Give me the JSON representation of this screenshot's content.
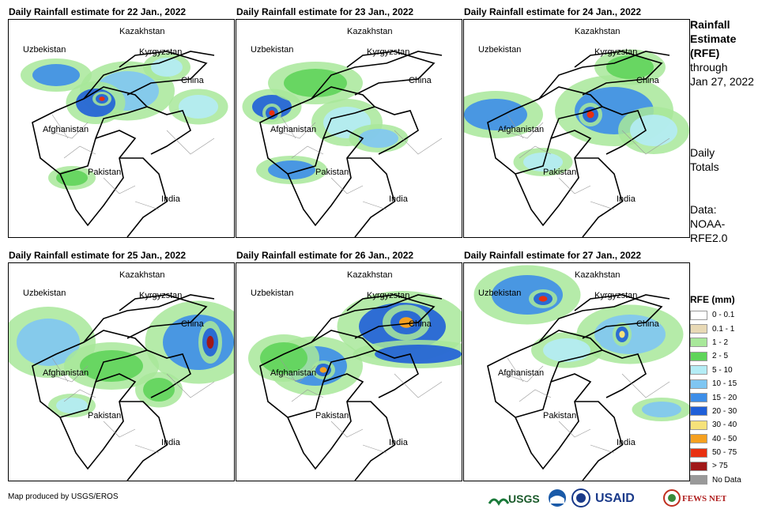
{
  "panels": [
    {
      "title": "Daily Rainfall estimate for 22 Jan., 2022"
    },
    {
      "title": "Daily Rainfall estimate for 23 Jan., 2022"
    },
    {
      "title": "Daily Rainfall estimate for 24 Jan., 2022"
    },
    {
      "title": "Daily Rainfall estimate for 25 Jan., 2022"
    },
    {
      "title": "Daily Rainfall estimate for 26 Jan., 2022"
    },
    {
      "title": "Daily Rainfall estimate for 27 Jan., 2022"
    }
  ],
  "place_labels": {
    "kazakhstan": "Kazakhstan",
    "uzbekistan": "Uzbekistan",
    "kyrgyzstan": "Kyrgyzstan",
    "china": "China",
    "afghanistan": "Afghanistan",
    "pakistan": "Pakistan",
    "india": "India"
  },
  "side": {
    "title_line1": "Rainfall",
    "title_line2": "Estimate",
    "title_line3": "(RFE)",
    "through": "through",
    "through_date": "Jan 27, 2022",
    "daily1": "Daily",
    "daily2": "Totals",
    "data1": "Data:",
    "data2": "NOAA-",
    "data3": "RFE2.0"
  },
  "legend": {
    "title": "RFE (mm)",
    "items": [
      {
        "label": "0 - 0.1",
        "color": "#ffffff"
      },
      {
        "label": "0.1 - 1",
        "color": "#e8d9b5"
      },
      {
        "label": "1 - 2",
        "color": "#a8e89a"
      },
      {
        "label": "2 - 5",
        "color": "#5fd45a"
      },
      {
        "label": "5 - 10",
        "color": "#b4ecf5"
      },
      {
        "label": "10 - 15",
        "color": "#7fc6f2"
      },
      {
        "label": "15 - 20",
        "color": "#3d8ee8"
      },
      {
        "label": "20 - 30",
        "color": "#1f5fd8"
      },
      {
        "label": "30 - 40",
        "color": "#f6e27a"
      },
      {
        "label": "40 - 50",
        "color": "#f5a020"
      },
      {
        "label": "50 - 75",
        "color": "#e83010"
      },
      {
        "label": "> 75",
        "color": "#a01818"
      },
      {
        "label": "No Data",
        "color": "#999999"
      }
    ]
  },
  "footer": "Map produced by USGS/EROS",
  "logos": {
    "usgs": "USGS",
    "usaid": "USAID",
    "fews": "FEWS NET"
  }
}
